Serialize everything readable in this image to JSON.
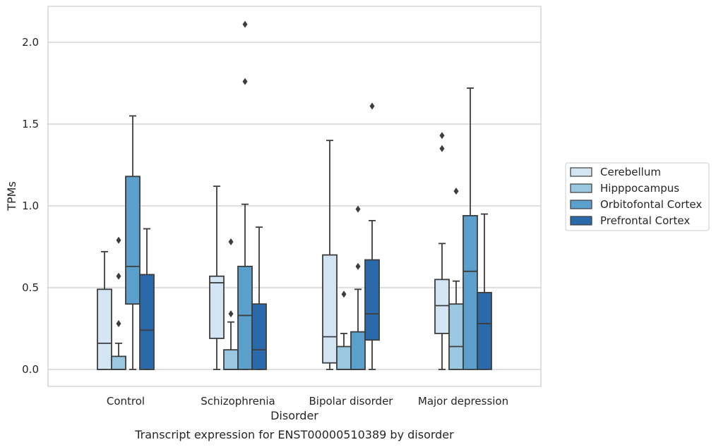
{
  "caption": "Transcript expression for ENST00000510389 by disorder",
  "chart_data": {
    "type": "box",
    "xlabel": "Disorder",
    "ylabel": "TPMs",
    "ylim": [
      -0.1,
      2.22
    ],
    "yticks": [
      0.0,
      0.5,
      1.0,
      1.5,
      2.0
    ],
    "ytick_labels": [
      "0.0",
      "0.5",
      "1.0",
      "1.5",
      "2.0"
    ],
    "grid": "horizontal",
    "legend_position": "right",
    "categories": [
      "Control",
      "Schizophrenia",
      "Bipolar disorder",
      "Major depression"
    ],
    "series": [
      {
        "name": "Cerebellum",
        "color": "#d3e4f3",
        "boxes": [
          {
            "whisker_low": 0.0,
            "q1": 0.0,
            "median": 0.16,
            "q3": 0.49,
            "whisker_high": 0.72,
            "outliers": []
          },
          {
            "whisker_low": 0.0,
            "q1": 0.19,
            "median": 0.53,
            "q3": 0.57,
            "whisker_high": 1.12,
            "outliers": []
          },
          {
            "whisker_low": 0.0,
            "q1": 0.04,
            "median": 0.2,
            "q3": 0.7,
            "whisker_high": 1.4,
            "outliers": []
          },
          {
            "whisker_low": 0.0,
            "q1": 0.22,
            "median": 0.39,
            "q3": 0.55,
            "whisker_high": 0.77,
            "outliers": [
              1.35,
              1.43
            ]
          }
        ]
      },
      {
        "name": "Hipppocampus",
        "color": "#9ac8e0",
        "boxes": [
          {
            "whisker_low": 0.0,
            "q1": 0.0,
            "median": 0.0,
            "q3": 0.08,
            "whisker_high": 0.16,
            "outliers": [
              0.28,
              0.57,
              0.79
            ]
          },
          {
            "whisker_low": 0.0,
            "q1": 0.0,
            "median": 0.0,
            "q3": 0.12,
            "whisker_high": 0.29,
            "outliers": [
              0.34,
              0.78
            ]
          },
          {
            "whisker_low": 0.0,
            "q1": 0.0,
            "median": 0.0,
            "q3": 0.14,
            "whisker_high": 0.22,
            "outliers": [
              0.46
            ]
          },
          {
            "whisker_low": 0.0,
            "q1": 0.0,
            "median": 0.14,
            "q3": 0.4,
            "whisker_high": 0.54,
            "outliers": [
              1.09
            ]
          }
        ]
      },
      {
        "name": "Orbitofontal Cortex",
        "color": "#5b9fcc",
        "boxes": [
          {
            "whisker_low": 0.0,
            "q1": 0.4,
            "median": 0.63,
            "q3": 1.18,
            "whisker_high": 1.55,
            "outliers": []
          },
          {
            "whisker_low": 0.0,
            "q1": 0.0,
            "median": 0.33,
            "q3": 0.63,
            "whisker_high": 1.01,
            "outliers": [
              1.76,
              2.11
            ]
          },
          {
            "whisker_low": 0.0,
            "q1": 0.0,
            "median": 0.0,
            "q3": 0.23,
            "whisker_high": 0.49,
            "outliers": [
              0.63,
              0.98
            ]
          },
          {
            "whisker_low": 0.0,
            "q1": 0.0,
            "median": 0.6,
            "q3": 0.94,
            "whisker_high": 1.72,
            "outliers": []
          }
        ]
      },
      {
        "name": "Prefrontal Cortex",
        "color": "#2a6aaa",
        "boxes": [
          {
            "whisker_low": 0.0,
            "q1": 0.0,
            "median": 0.24,
            "q3": 0.58,
            "whisker_high": 0.86,
            "outliers": []
          },
          {
            "whisker_low": 0.0,
            "q1": 0.0,
            "median": 0.12,
            "q3": 0.4,
            "whisker_high": 0.87,
            "outliers": []
          },
          {
            "whisker_low": 0.0,
            "q1": 0.18,
            "median": 0.34,
            "q3": 0.67,
            "whisker_high": 0.91,
            "outliers": [
              1.61
            ]
          },
          {
            "whisker_low": 0.0,
            "q1": 0.0,
            "median": 0.28,
            "q3": 0.47,
            "whisker_high": 0.95,
            "outliers": []
          }
        ]
      }
    ]
  }
}
